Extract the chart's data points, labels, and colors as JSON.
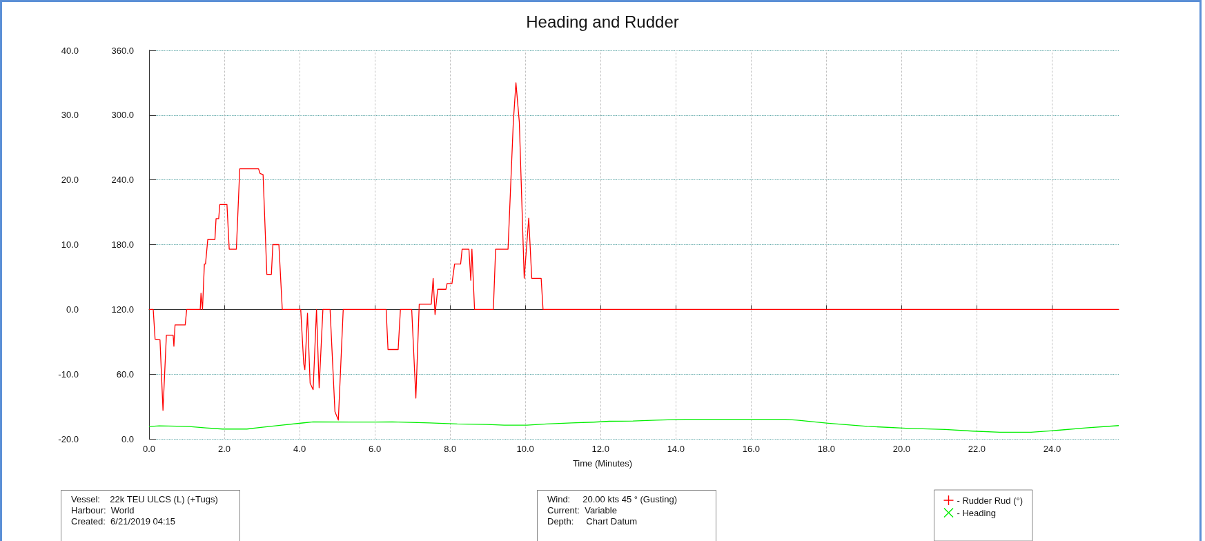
{
  "chart_data": {
    "type": "line",
    "title": "Heading and Rudder",
    "xlabel": "Time (Minutes)",
    "xlim": [
      0,
      25.77
    ],
    "xticks": [
      {
        "value": 0,
        "label": "0.0"
      },
      {
        "value": 2,
        "label": "2.0"
      },
      {
        "value": 4,
        "label": "4.0"
      },
      {
        "value": 6,
        "label": "6.0"
      },
      {
        "value": 8,
        "label": "8.0"
      },
      {
        "value": 10,
        "label": "10.0"
      },
      {
        "value": 12,
        "label": "12.0"
      },
      {
        "value": 14,
        "label": "14.0"
      },
      {
        "value": 16,
        "label": "16.0"
      },
      {
        "value": 18,
        "label": "18.0"
      },
      {
        "value": 20,
        "label": "20.0"
      },
      {
        "value": 22,
        "label": "22.0"
      },
      {
        "value": 24,
        "label": "24.0"
      }
    ],
    "ylim": [
      -20,
      40
    ],
    "yticks": [
      {
        "value": -20,
        "label": "-20.0"
      },
      {
        "value": -10,
        "label": "-10.0"
      },
      {
        "value": 0,
        "label": "0.0"
      },
      {
        "value": 10,
        "label": "10.0"
      },
      {
        "value": 20,
        "label": "20.0"
      },
      {
        "value": 30,
        "label": "30.0"
      },
      {
        "value": 40,
        "label": "40.0"
      }
    ],
    "y2lim": [
      0,
      360
    ],
    "y2ticks": [
      {
        "value": 0,
        "label": "0.0"
      },
      {
        "value": 60,
        "label": "60.0"
      },
      {
        "value": 120,
        "label": "120.0"
      },
      {
        "value": 180,
        "label": "180.0"
      },
      {
        "value": 240,
        "label": "240.0"
      },
      {
        "value": 300,
        "label": "300.0"
      },
      {
        "value": 360,
        "label": "360.0"
      }
    ],
    "grid": true,
    "legend": "bottom right",
    "line_style": "solid",
    "annotations": [
      "Vessel:    22k TEU ULCS (L) (+Tugs)\nHarbour:  World\nCreated:  6/21/2019 04:15",
      "Wind:     20.00 kts 45 ° (Gusting)\nCurrent:  Variable\nDepth:     Chart Datum"
    ],
    "series": [
      {
        "name": "- Rudder Rud (°)",
        "color": "#ff0000",
        "x": [
          0,
          0.11,
          0.16,
          0.29,
          0.37,
          0.46,
          0.64,
          0.66,
          0.69,
          0.96,
          1.0,
          1.36,
          1.38,
          1.42,
          1.47,
          1.5,
          1.56,
          1.75,
          1.78,
          1.85,
          1.88,
          2.07,
          2.13,
          2.32,
          2.41,
          2.91,
          2.95,
          3.03,
          3.13,
          3.25,
          3.29,
          3.45,
          3.54,
          4.03,
          4.11,
          4.14,
          4.21,
          4.28,
          4.36,
          4.45,
          4.52,
          4.62,
          4.81,
          4.94,
          5.03,
          5.16,
          6.3,
          6.35,
          6.62,
          6.68,
          6.98,
          7.09,
          7.18,
          7.5,
          7.55,
          7.6,
          7.67,
          7.89,
          7.92,
          8.05,
          8.12,
          8.28,
          8.32,
          8.5,
          8.55,
          8.58,
          8.65,
          9.15,
          9.21,
          9.54,
          9.68,
          9.75,
          9.84,
          9.97,
          10.09,
          10.17,
          10.42,
          10.47,
          25.77
        ],
        "values": [
          0,
          0,
          -4.6,
          -4.7,
          -15.6,
          -4.0,
          -4.0,
          -5.7,
          -2.4,
          -2.4,
          0,
          0,
          2.5,
          0,
          7.0,
          7.0,
          10.8,
          10.8,
          14.0,
          14.0,
          16.2,
          16.2,
          9.3,
          9.3,
          21.7,
          21.7,
          21.0,
          20.8,
          5.4,
          5.4,
          10.0,
          10.0,
          0,
          0,
          -8.4,
          -9.3,
          -0.6,
          -11.4,
          -12.4,
          0,
          -12.1,
          0,
          0,
          -15.8,
          -17.1,
          0,
          0,
          -6.2,
          -6.2,
          0,
          0,
          -13.7,
          0.8,
          0.8,
          4.8,
          -0.8,
          3.1,
          3.1,
          4.0,
          4.0,
          7.0,
          7.0,
          9.3,
          9.3,
          4.5,
          9.3,
          0,
          0,
          9.3,
          9.3,
          28.9,
          35.0,
          28.9,
          4.8,
          14.1,
          4.8,
          4.8,
          0,
          0
        ]
      },
      {
        "name": "- Heading",
        "color": "#00ee00",
        "axis": "y2",
        "x": [
          0,
          0.27,
          1.07,
          1.51,
          1.95,
          2.6,
          2.97,
          3.48,
          4.07,
          4.36,
          6.0,
          6.46,
          7.46,
          8.19,
          8.98,
          9.44,
          10.04,
          10.57,
          11.23,
          11.82,
          12.23,
          12.86,
          13.48,
          14.26,
          16.9,
          17.22,
          18.05,
          19.09,
          20.12,
          21.16,
          21.89,
          22.61,
          23.44,
          24.16,
          24.89,
          25.77
        ],
        "values": [
          11.4,
          12.1,
          11.4,
          10.1,
          9.1,
          9.1,
          10.6,
          12.6,
          14.7,
          15.7,
          15.6,
          15.7,
          14.8,
          13.8,
          13.4,
          12.7,
          12.7,
          13.8,
          14.8,
          15.5,
          16.3,
          16.6,
          17.4,
          18.1,
          18.1,
          17.4,
          14.5,
          11.6,
          9.8,
          8.7,
          7.2,
          6.1,
          6.1,
          8.0,
          10.1,
          12.3
        ]
      }
    ]
  }
}
